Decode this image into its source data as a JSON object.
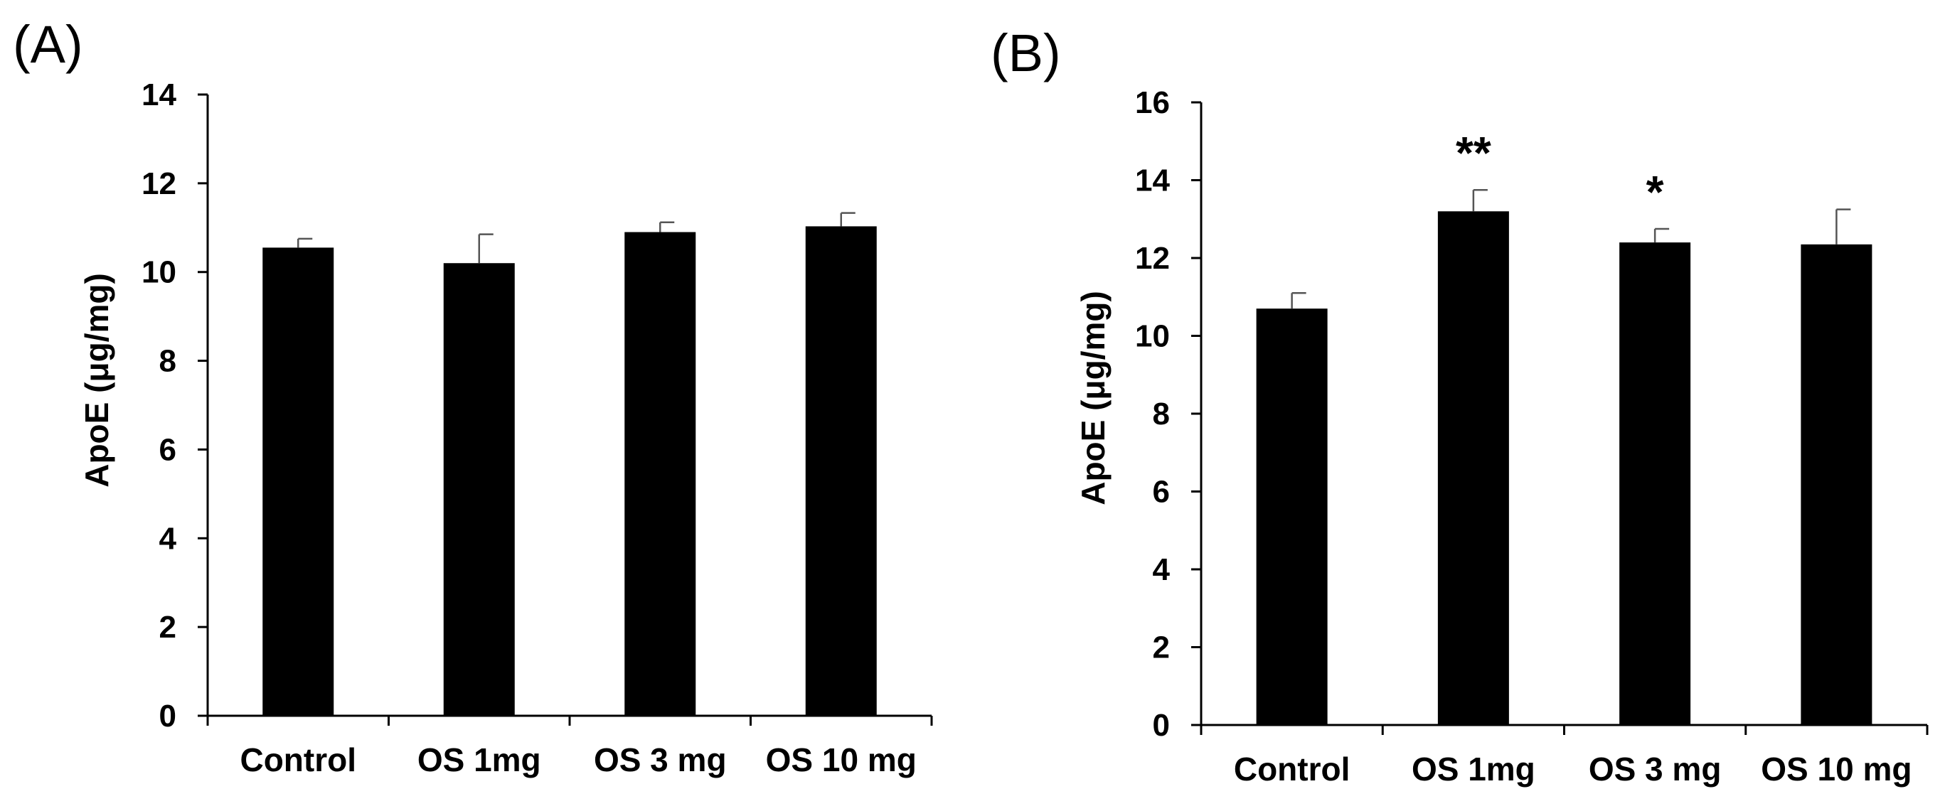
{
  "chart_data": [
    {
      "panel_label": "(A)",
      "type": "bar",
      "categories": [
        "Control",
        "OS 1mg",
        "OS 3 mg",
        "OS 10 mg"
      ],
      "values": [
        10.55,
        10.2,
        10.9,
        11.03
      ],
      "errors": [
        0.2,
        0.65,
        0.22,
        0.3
      ],
      "annotations": [
        "",
        "",
        "",
        ""
      ],
      "ylabel": "ApoE (μg/mg)",
      "ylim": [
        0,
        14
      ],
      "yticks": [
        0,
        2,
        4,
        6,
        8,
        10,
        12,
        14
      ],
      "bar_color": "#000000"
    },
    {
      "panel_label": "(B)",
      "type": "bar",
      "categories": [
        "Control",
        "OS 1mg",
        "OS 3 mg",
        "OS 10 mg"
      ],
      "values": [
        10.7,
        13.2,
        12.4,
        12.35
      ],
      "errors": [
        0.4,
        0.55,
        0.35,
        0.9
      ],
      "annotations": [
        "",
        "**",
        "*",
        ""
      ],
      "ylabel": "ApoE (μg/mg)",
      "ylim": [
        0,
        16
      ],
      "yticks": [
        0,
        2,
        4,
        6,
        8,
        10,
        12,
        14,
        16
      ],
      "bar_color": "#000000"
    }
  ]
}
